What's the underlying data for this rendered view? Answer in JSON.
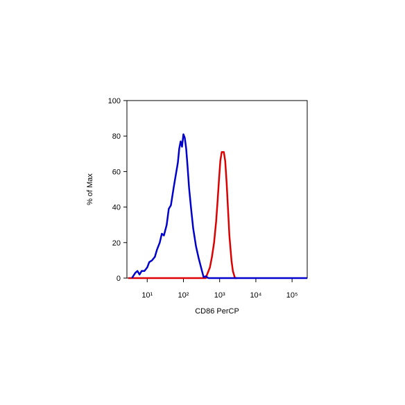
{
  "chart_data": {
    "type": "line",
    "xlabel": "CD86 PerCP",
    "ylabel": "% of Max",
    "xscale": "log",
    "xlim": [
      2.75,
      262144
    ],
    "ylim": [
      0,
      100
    ],
    "xticks": [
      {
        "value": 10,
        "label": "10¹"
      },
      {
        "value": 100,
        "label": "10²"
      },
      {
        "value": 1000,
        "label": "10³"
      },
      {
        "value": 10000,
        "label": "10⁴"
      },
      {
        "value": 100000,
        "label": "10⁵"
      }
    ],
    "yticks": [
      0,
      20,
      40,
      60,
      80,
      100
    ],
    "series": [
      {
        "color": "#dd0000",
        "x": [
          3.0,
          412,
          451,
          538,
          614,
          702,
          801,
          875,
          957,
          1045,
          1143,
          1304,
          1425,
          1557,
          1702,
          1859,
          2122,
          2319,
          2649,
          3000
        ],
        "values": [
          0,
          0,
          2,
          6,
          12,
          20,
          32,
          43,
          55,
          66,
          71,
          71,
          66,
          54,
          39,
          24,
          10,
          4,
          0,
          0
        ]
      },
      {
        "color": "#0000cc",
        "x": [
          3.78,
          4.71,
          5.38,
          6.14,
          7.02,
          8.38,
          10,
          11.4,
          13.6,
          16.3,
          18.6,
          22.2,
          25.3,
          28.9,
          34.5,
          39.4,
          45.1,
          53.8,
          61.4,
          70.2,
          76.7,
          83.8,
          91.5,
          100,
          109,
          119,
          130,
          143,
          163,
          186,
          222,
          265,
          316,
          361,
          412,
          492,
          262144
        ],
        "values": [
          0,
          3,
          4,
          2,
          4,
          4,
          6,
          9,
          10,
          12,
          16,
          20,
          25,
          24,
          30,
          39,
          41,
          51,
          58,
          65,
          73,
          77,
          74,
          81,
          79,
          73,
          63,
          51,
          39,
          28,
          18,
          11,
          5,
          0.5,
          1,
          0,
          0
        ]
      }
    ]
  }
}
